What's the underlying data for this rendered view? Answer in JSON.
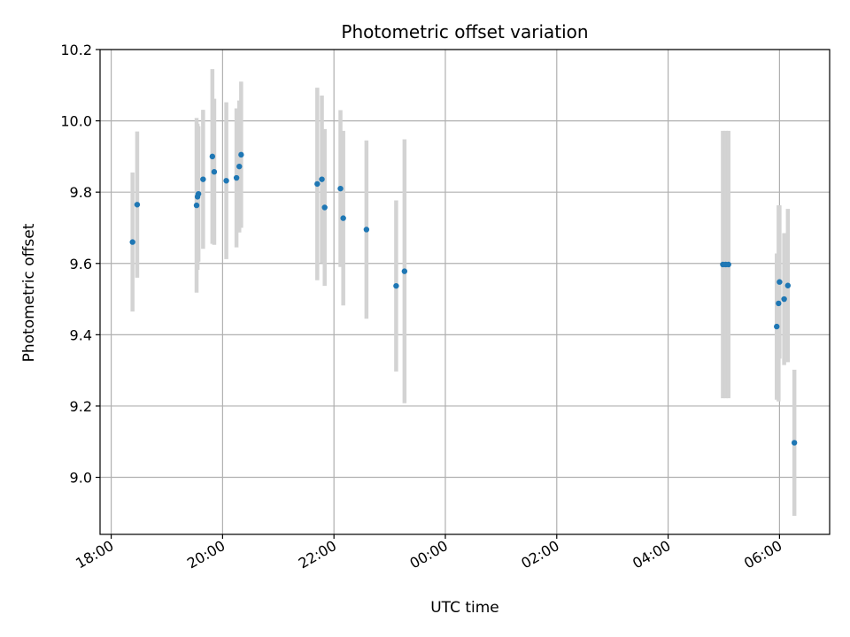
{
  "chart_data": {
    "type": "scatter",
    "title": "Photometric offset variation",
    "xlabel": "UTC time",
    "ylabel": "Photometric offset",
    "x_tick_labels": [
      "18:00",
      "20:00",
      "22:00",
      "00:00",
      "02:00",
      "04:00",
      "06:00"
    ],
    "y_tick_labels": [
      "9.0",
      "9.2",
      "9.4",
      "9.6",
      "9.8",
      "10.0",
      "10.2"
    ],
    "y_ticks": [
      9.0,
      9.2,
      9.4,
      9.6,
      9.8,
      10.0,
      10.2
    ],
    "xlim_hours": [
      17.8,
      30.9
    ],
    "ylim": [
      8.84,
      10.2
    ],
    "grid": true,
    "colors": {
      "marker": "#1f77b4",
      "errorbar": "#d3d3d3",
      "grid": "#b0b0b0"
    },
    "points": [
      {
        "t": "18:23",
        "y": 9.66,
        "err": 0.195
      },
      {
        "t": "18:28",
        "y": 9.765,
        "err": 0.205
      },
      {
        "t": "19:32",
        "y": 9.763,
        "err": 0.245
      },
      {
        "t": "19:33",
        "y": 9.787,
        "err": 0.205
      },
      {
        "t": "19:34",
        "y": 9.795,
        "err": 0.19
      },
      {
        "t": "19:39",
        "y": 9.836,
        "err": 0.195
      },
      {
        "t": "19:49",
        "y": 9.9,
        "err": 0.245
      },
      {
        "t": "19:51",
        "y": 9.857,
        "err": 0.205
      },
      {
        "t": "20:04",
        "y": 9.832,
        "err": 0.22
      },
      {
        "t": "20:15",
        "y": 9.84,
        "err": 0.195
      },
      {
        "t": "20:18",
        "y": 9.872,
        "err": 0.185
      },
      {
        "t": "20:20",
        "y": 9.905,
        "err": 0.205
      },
      {
        "t": "21:42",
        "y": 9.823,
        "err": 0.27
      },
      {
        "t": "21:47",
        "y": 9.836,
        "err": 0.235
      },
      {
        "t": "21:50",
        "y": 9.757,
        "err": 0.22
      },
      {
        "t": "22:07",
        "y": 9.81,
        "err": 0.22
      },
      {
        "t": "22:10",
        "y": 9.727,
        "err": 0.245
      },
      {
        "t": "22:35",
        "y": 9.695,
        "err": 0.25
      },
      {
        "t": "23:07",
        "y": 9.537,
        "err": 0.24
      },
      {
        "t": "23:16",
        "y": 9.578,
        "err": 0.37
      },
      {
        "t": "04:59",
        "y": 9.597,
        "err": 0.375
      },
      {
        "t": "05:02",
        "y": 9.597,
        "err": 0.375
      },
      {
        "t": "05:05",
        "y": 9.597,
        "err": 0.375
      },
      {
        "t": "05:57",
        "y": 9.423,
        "err": 0.205
      },
      {
        "t": "05:59",
        "y": 9.488,
        "err": 0.275
      },
      {
        "t": "06:00",
        "y": 9.548,
        "err": 0.215
      },
      {
        "t": "06:05",
        "y": 9.5,
        "err": 0.185
      },
      {
        "t": "06:09",
        "y": 9.538,
        "err": 0.215
      },
      {
        "t": "06:16",
        "y": 9.097,
        "err": 0.205
      }
    ]
  }
}
